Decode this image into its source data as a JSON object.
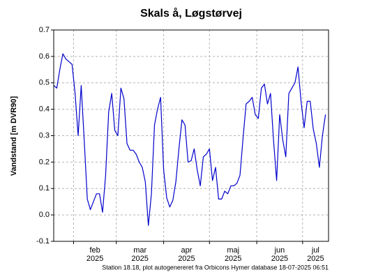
{
  "chart_data": {
    "type": "line",
    "title": "Skals å, Løgstørvej",
    "y_label": "Vandstand [m DVR90]",
    "footnote": "Station 18.18, plot autogenereret fra Orbicons Hymer database 18-07-2025 06:51",
    "x": [
      "2025-01-19",
      "2025-01-21",
      "2025-01-23",
      "2025-01-25",
      "2025-01-27",
      "2025-01-29",
      "2025-01-31",
      "2025-02-02",
      "2025-02-04",
      "2025-02-06",
      "2025-02-08",
      "2025-02-10",
      "2025-02-12",
      "2025-02-14",
      "2025-02-16",
      "2025-02-18",
      "2025-02-20",
      "2025-02-22",
      "2025-02-24",
      "2025-02-26",
      "2025-02-28",
      "2025-03-02",
      "2025-03-04",
      "2025-03-06",
      "2025-03-08",
      "2025-03-10",
      "2025-03-12",
      "2025-03-14",
      "2025-03-16",
      "2025-03-18",
      "2025-03-20",
      "2025-03-22",
      "2025-03-24",
      "2025-03-26",
      "2025-03-28",
      "2025-03-30",
      "2025-04-01",
      "2025-04-03",
      "2025-04-05",
      "2025-04-07",
      "2025-04-09",
      "2025-04-11",
      "2025-04-13",
      "2025-04-15",
      "2025-04-17",
      "2025-04-19",
      "2025-04-21",
      "2025-04-23",
      "2025-04-25",
      "2025-04-27",
      "2025-04-29",
      "2025-05-01",
      "2025-05-03",
      "2025-05-05",
      "2025-05-07",
      "2025-05-09",
      "2025-05-11",
      "2025-05-13",
      "2025-05-15",
      "2025-05-17",
      "2025-05-19",
      "2025-05-21",
      "2025-05-23",
      "2025-05-25",
      "2025-05-27",
      "2025-05-29",
      "2025-05-31",
      "2025-06-02",
      "2025-06-04",
      "2025-06-06",
      "2025-06-08",
      "2025-06-10",
      "2025-06-12",
      "2025-06-14",
      "2025-06-16",
      "2025-06-18",
      "2025-06-20",
      "2025-06-22",
      "2025-06-24",
      "2025-06-26",
      "2025-06-28",
      "2025-06-30",
      "2025-07-02",
      "2025-07-04",
      "2025-07-06",
      "2025-07-08",
      "2025-07-10",
      "2025-07-12",
      "2025-07-14",
      "2025-07-16"
    ],
    "series": [
      {
        "name": "Vandstand",
        "color": "#0000cc",
        "values": [
          0.49,
          0.48,
          0.55,
          0.61,
          0.59,
          0.58,
          0.57,
          0.46,
          0.3,
          0.49,
          0.28,
          0.06,
          0.02,
          0.05,
          0.08,
          0.08,
          0.01,
          0.15,
          0.39,
          0.46,
          0.32,
          0.3,
          0.48,
          0.44,
          0.27,
          0.245,
          0.245,
          0.23,
          0.2,
          0.18,
          0.125,
          -0.04,
          0.08,
          0.34,
          0.4,
          0.445,
          0.17,
          0.065,
          0.03,
          0.055,
          0.125,
          0.25,
          0.36,
          0.34,
          0.2,
          0.205,
          0.25,
          0.17,
          0.11,
          0.22,
          0.23,
          0.25,
          0.13,
          0.18,
          0.06,
          0.06,
          0.09,
          0.08,
          0.11,
          0.11,
          0.12,
          0.15,
          0.29,
          0.42,
          0.43,
          0.445,
          0.38,
          0.365,
          0.48,
          0.495,
          0.42,
          0.46,
          0.28,
          0.13,
          0.38,
          0.285,
          0.22,
          0.46,
          0.48,
          0.5,
          0.56,
          0.43,
          0.33,
          0.43,
          0.43,
          0.325,
          0.27,
          0.18,
          0.3,
          0.38
        ]
      }
    ],
    "xlim": [
      "2025-01-19",
      "2025-07-18"
    ],
    "xticks": [
      {
        "value": "2025-02-01",
        "label": [
          "feb",
          "2025"
        ]
      },
      {
        "value": "2025-03-01",
        "label": [
          "mar",
          "2025"
        ]
      },
      {
        "value": "2025-04-01",
        "label": [
          "apr",
          "2025"
        ]
      },
      {
        "value": "2025-05-01",
        "label": [
          "maj",
          "2025"
        ]
      },
      {
        "value": "2025-06-01",
        "label": [
          "jun",
          "2025"
        ]
      },
      {
        "value": "2025-07-01",
        "label": [
          "jul",
          "2025"
        ]
      }
    ],
    "ylim": [
      -0.1,
      0.7
    ],
    "yticks": [
      -0.1,
      {
        "value": 0,
        "label": "0.0"
      },
      0.1,
      0.2,
      0.3,
      0.4,
      0.5,
      0.6,
      0.7
    ],
    "grid": true
  }
}
